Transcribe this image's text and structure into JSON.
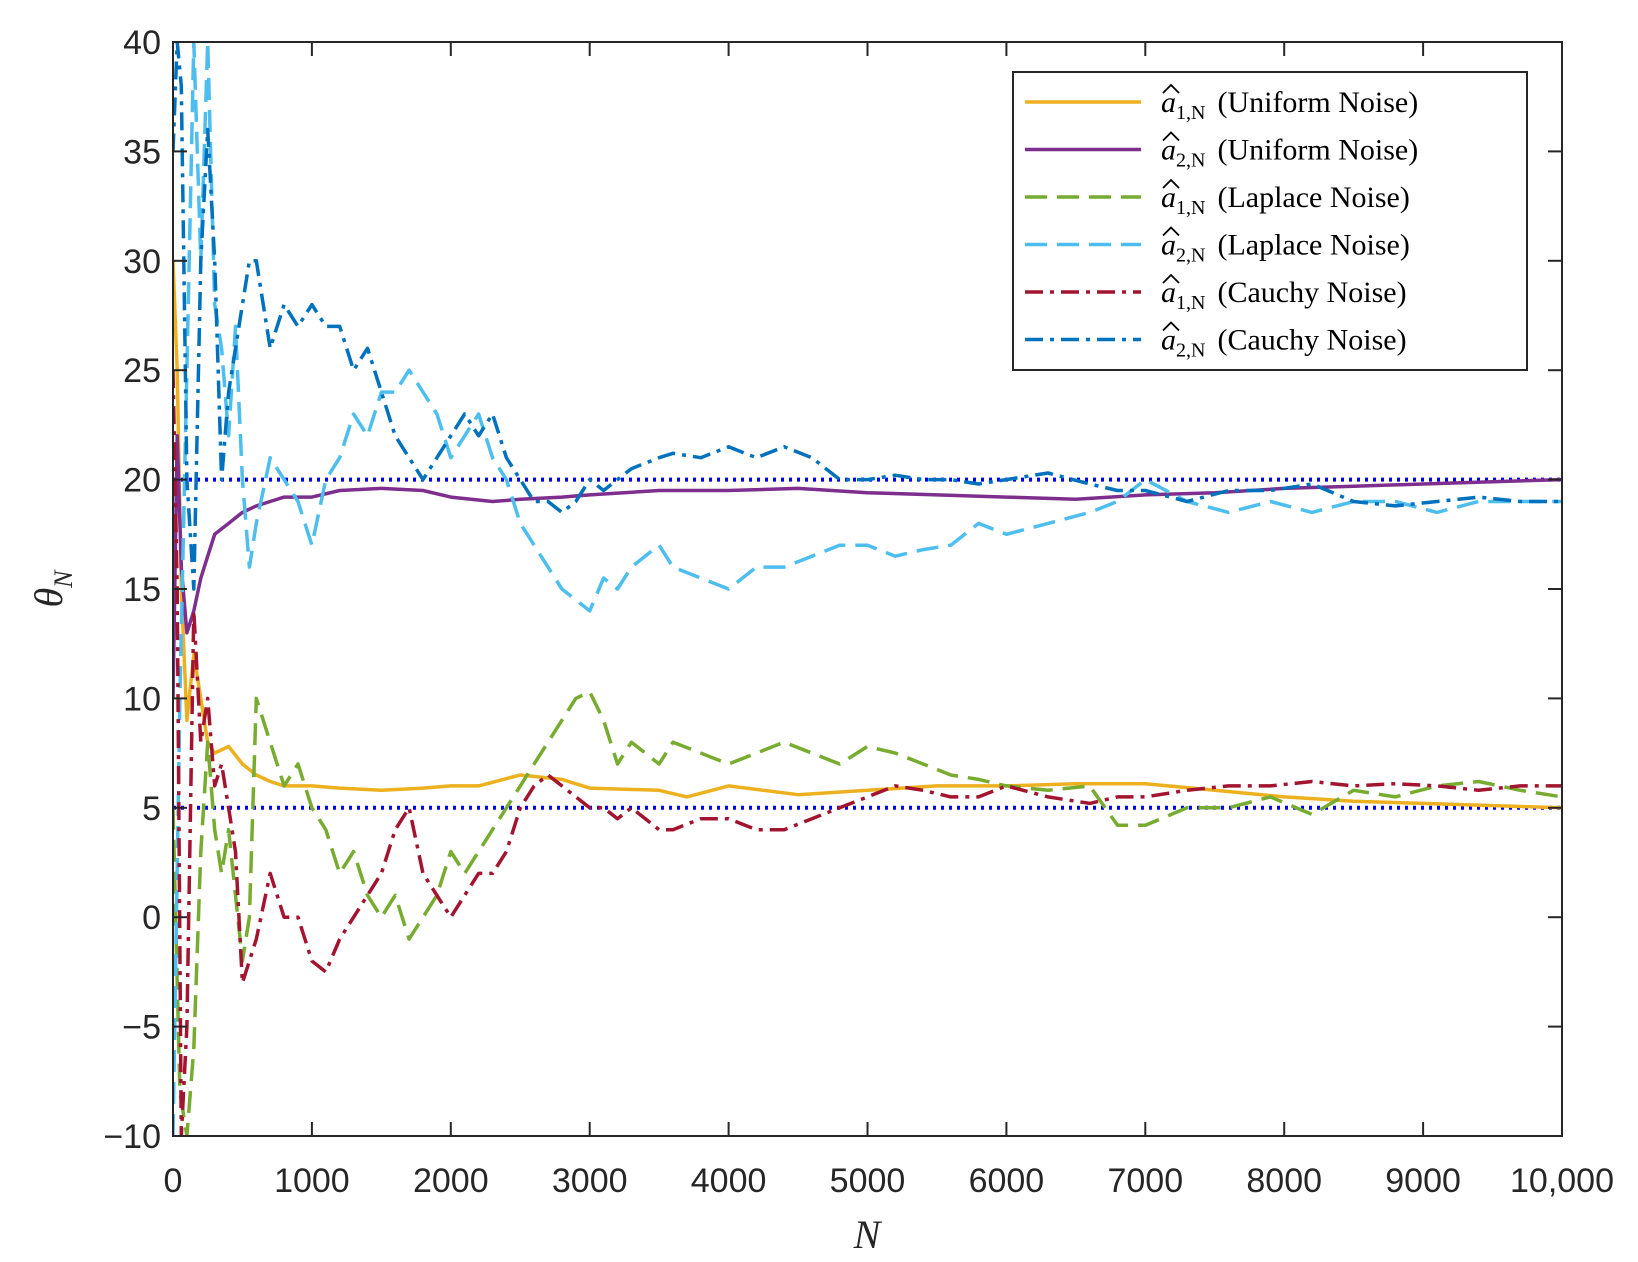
{
  "chart_data": {
    "type": "line",
    "title": "",
    "xlabel": "N",
    "ylabel": "θ̂_N",
    "xlim": [
      0,
      10000
    ],
    "ylim": [
      -10,
      40
    ],
    "xticks": [
      0,
      1000,
      2000,
      3000,
      4000,
      5000,
      6000,
      7000,
      8000,
      9000,
      10000
    ],
    "xtick_labels": [
      "0",
      "1000",
      "2000",
      "3000",
      "4000",
      "5000",
      "6000",
      "7000",
      "8000",
      "9000",
      "10,000"
    ],
    "yticks": [
      -10,
      -5,
      0,
      5,
      10,
      15,
      20,
      25,
      30,
      35,
      40
    ],
    "ytick_labels": [
      "−10",
      "−5",
      "0",
      "5",
      "10",
      "15",
      "20",
      "25",
      "30",
      "35",
      "40"
    ],
    "grid": false,
    "legend_position": "top-right",
    "reference_lines": [
      {
        "y": 20,
        "color": "#0000ff",
        "style": "dotted"
      },
      {
        "y": 5,
        "color": "#0000ff",
        "style": "dotted"
      }
    ],
    "series": [
      {
        "name": "â1,N (Uniform Noise)",
        "symbol": "a",
        "sub": "1,N",
        "noise": "(Uniform Noise)",
        "color": "#EDB120",
        "style": "solid",
        "x": [
          0,
          30,
          60,
          100,
          150,
          200,
          250,
          300,
          400,
          500,
          600,
          700,
          800,
          1000,
          1200,
          1500,
          1800,
          2000,
          2200,
          2500,
          2800,
          3000,
          3500,
          3700,
          4000,
          4500,
          5000,
          5500,
          6000,
          6500,
          7000,
          7500,
          8000,
          8500,
          9000,
          9500,
          10000
        ],
        "y": [
          30,
          25,
          15,
          9,
          12,
          10,
          8,
          7.5,
          7.8,
          7,
          6.5,
          6.2,
          6,
          6,
          5.9,
          5.8,
          5.9,
          6,
          6,
          6.5,
          6.3,
          5.9,
          5.8,
          5.5,
          6,
          5.6,
          5.8,
          6,
          6,
          6.1,
          6.1,
          5.8,
          5.5,
          5.3,
          5.2,
          5.1,
          5
        ]
      },
      {
        "name": "â2,N (Uniform Noise)",
        "symbol": "a",
        "sub": "2,N",
        "noise": "(Uniform Noise)",
        "color": "#7E2F8E",
        "style": "solid",
        "x": [
          0,
          30,
          60,
          100,
          150,
          200,
          250,
          300,
          400,
          500,
          600,
          700,
          800,
          1000,
          1200,
          1500,
          1800,
          2000,
          2300,
          2500,
          2800,
          3000,
          3500,
          4000,
          4500,
          5000,
          5500,
          6000,
          6500,
          7000,
          7500,
          8000,
          8500,
          9000,
          9500,
          10000
        ],
        "y": [
          10,
          22,
          16,
          13,
          14,
          15.5,
          16.5,
          17.5,
          18,
          18.5,
          18.8,
          19,
          19.2,
          19.2,
          19.5,
          19.6,
          19.5,
          19.2,
          19,
          19.1,
          19.2,
          19.3,
          19.5,
          19.5,
          19.6,
          19.4,
          19.3,
          19.2,
          19.1,
          19.3,
          19.4,
          19.6,
          19.7,
          19.8,
          19.9,
          20
        ]
      },
      {
        "name": "â1,N (Laplace Noise)",
        "symbol": "a",
        "sub": "1,N",
        "noise": "(Laplace Noise)",
        "color": "#77AC30",
        "style": "dashed",
        "x": [
          0,
          50,
          100,
          150,
          200,
          250,
          300,
          350,
          400,
          450,
          500,
          550,
          600,
          700,
          800,
          900,
          1000,
          1100,
          1200,
          1300,
          1400,
          1500,
          1600,
          1700,
          1800,
          1900,
          2000,
          2100,
          2200,
          2300,
          2400,
          2500,
          2600,
          2700,
          2800,
          2900,
          3000,
          3100,
          3200,
          3300,
          3500,
          3600,
          3800,
          4000,
          4200,
          4400,
          4600,
          4800,
          5000,
          5200,
          5400,
          5600,
          5800,
          6000,
          6300,
          6600,
          6800,
          7000,
          7300,
          7600,
          7900,
          8200,
          8500,
          8800,
          9100,
          9400,
          9700,
          10000
        ],
        "y": [
          5,
          -8,
          -10,
          -6,
          3,
          8,
          4,
          2,
          4,
          1,
          -2,
          0,
          10,
          8,
          6,
          7,
          5,
          4,
          2,
          3,
          1,
          0,
          1,
          -1,
          0,
          1,
          3,
          2,
          3,
          4,
          5,
          6,
          7,
          8,
          9,
          10,
          10.3,
          9,
          7,
          8,
          7,
          8,
          7.5,
          7,
          7.5,
          8,
          7.5,
          7,
          7.8,
          7.5,
          7,
          6.5,
          6.3,
          6,
          5.8,
          6,
          4.2,
          4.2,
          5,
          5,
          5.5,
          4.7,
          5.8,
          5.5,
          6,
          6.2,
          5.8,
          5.5
        ]
      },
      {
        "name": "â2,N (Laplace Noise)",
        "symbol": "a",
        "sub": "2,N",
        "noise": "(Laplace Noise)",
        "color": "#4DBEEE",
        "style": "dashed",
        "x": [
          0,
          50,
          100,
          150,
          200,
          250,
          300,
          350,
          400,
          450,
          500,
          550,
          600,
          700,
          800,
          900,
          1000,
          1100,
          1200,
          1300,
          1400,
          1500,
          1600,
          1700,
          1800,
          1900,
          2000,
          2100,
          2200,
          2300,
          2400,
          2500,
          2600,
          2700,
          2800,
          2900,
          3000,
          3100,
          3200,
          3300,
          3500,
          3600,
          3800,
          4000,
          4200,
          4400,
          4600,
          4800,
          5000,
          5200,
          5400,
          5600,
          5800,
          6000,
          6300,
          6600,
          6800,
          7000,
          7300,
          7600,
          7900,
          8200,
          8500,
          8800,
          9100,
          9400,
          9700,
          10000
        ],
        "y": [
          -10,
          10,
          25,
          40,
          30,
          40,
          28,
          26,
          22,
          27,
          20,
          16,
          18,
          21,
          20,
          19,
          17,
          20,
          21,
          23,
          22,
          24,
          24,
          25,
          24,
          23,
          21,
          22,
          23,
          21,
          20,
          18,
          17,
          16,
          15,
          14.5,
          14,
          15.5,
          15,
          16,
          17,
          16,
          15.5,
          15,
          16,
          16,
          16.5,
          17,
          17,
          16.5,
          16.8,
          17,
          18,
          17.5,
          18,
          18.5,
          19,
          20,
          19,
          18.5,
          19,
          18.5,
          19,
          19,
          18.5,
          19,
          19,
          19
        ]
      },
      {
        "name": "â1,N (Cauchy Noise)",
        "symbol": "a",
        "sub": "1,N",
        "noise": "(Cauchy Noise)",
        "color": "#A2142F",
        "style": "dashdot",
        "x": [
          0,
          30,
          60,
          100,
          150,
          200,
          250,
          300,
          350,
          400,
          450,
          500,
          550,
          600,
          700,
          800,
          900,
          1000,
          1100,
          1200,
          1300,
          1400,
          1500,
          1600,
          1700,
          1800,
          1900,
          2000,
          2100,
          2200,
          2300,
          2400,
          2500,
          2600,
          2700,
          2800,
          2900,
          3000,
          3100,
          3200,
          3300,
          3500,
          3600,
          3800,
          4000,
          4200,
          4400,
          4600,
          4800,
          5000,
          5200,
          5400,
          5600,
          5800,
          6000,
          6300,
          6600,
          6800,
          7000,
          7300,
          7600,
          7900,
          8200,
          8500,
          8800,
          9100,
          9400,
          9700,
          10000
        ],
        "y": [
          25,
          15,
          -10,
          -5,
          14,
          8,
          10,
          6,
          7,
          5,
          3,
          -3,
          -2,
          -1,
          2,
          0,
          0,
          -2,
          -2.5,
          -1,
          0,
          1,
          2,
          4,
          5,
          2,
          1,
          0,
          1,
          2,
          2,
          3,
          5,
          6,
          6.5,
          6,
          5.5,
          5,
          5,
          4.5,
          5,
          4,
          4,
          4.5,
          4.5,
          4,
          4,
          4.5,
          5,
          5.5,
          6,
          5.8,
          5.5,
          5.5,
          6,
          5.5,
          5.2,
          5.5,
          5.5,
          5.8,
          6,
          6,
          6.2,
          6,
          6.1,
          6,
          5.8,
          6,
          6
        ]
      },
      {
        "name": "â2,N (Cauchy Noise)",
        "symbol": "a",
        "sub": "2,N",
        "noise": "(Cauchy Noise)",
        "color": "#0072BD",
        "style": "dashdot",
        "x": [
          0,
          30,
          60,
          100,
          150,
          200,
          250,
          300,
          350,
          400,
          450,
          500,
          550,
          600,
          700,
          800,
          900,
          1000,
          1100,
          1200,
          1300,
          1400,
          1500,
          1600,
          1700,
          1800,
          1900,
          2000,
          2100,
          2200,
          2300,
          2400,
          2500,
          2600,
          2700,
          2800,
          2900,
          3000,
          3100,
          3200,
          3300,
          3500,
          3600,
          3800,
          4000,
          4200,
          4400,
          4600,
          4800,
          5000,
          5200,
          5400,
          5600,
          5800,
          6000,
          6300,
          6600,
          6800,
          7000,
          7300,
          7600,
          7900,
          8200,
          8500,
          8800,
          9100,
          9400,
          9700,
          10000
        ],
        "y": [
          35,
          40,
          38,
          20,
          15,
          30,
          36,
          30,
          20,
          24,
          26,
          28,
          30,
          30,
          26,
          28,
          27,
          28,
          27,
          27,
          25,
          26,
          24,
          22,
          21,
          20,
          21,
          22,
          23,
          22,
          23,
          21,
          20,
          19,
          19,
          18.5,
          19,
          20,
          19.5,
          20,
          20.5,
          21,
          21.2,
          21,
          21.5,
          21,
          21.5,
          21,
          20,
          20,
          20.2,
          20,
          20,
          19.8,
          20,
          20.3,
          19.8,
          19.5,
          19.5,
          19,
          19.5,
          19.5,
          19.8,
          19,
          18.8,
          19,
          19.2,
          19,
          19
        ]
      }
    ]
  }
}
